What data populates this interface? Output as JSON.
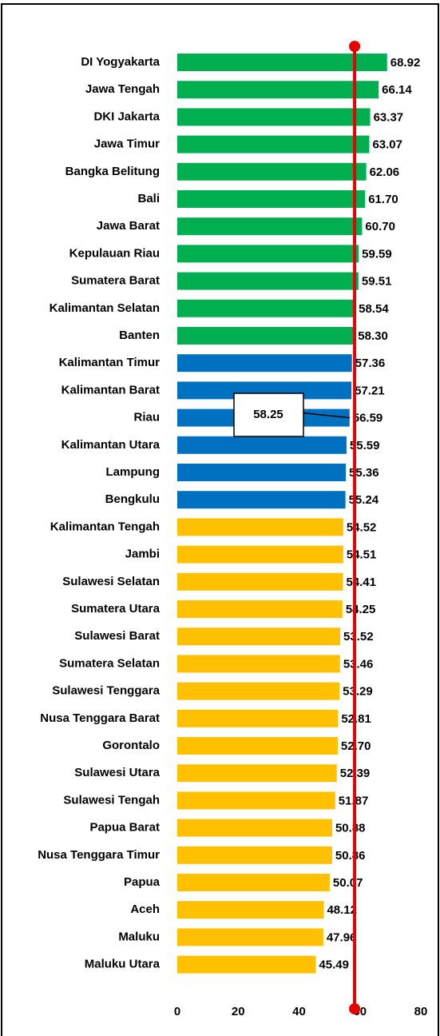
{
  "chart_data": {
    "type": "hbar",
    "categories": [
      "DI Yogyakarta",
      "Jawa Tengah",
      "DKI Jakarta",
      "Jawa Timur",
      "Bangka Belitung",
      "Bali",
      "Jawa Barat",
      "Kepulauan Riau",
      "Sumatera Barat",
      "Kalimantan Selatan",
      "Banten",
      "Kalimantan Timur",
      "Kalimantan Barat",
      "Riau",
      "Kalimantan Utara",
      "Lampung",
      "Bengkulu",
      "Kalimantan Tengah",
      "Jambi",
      "Sulawesi Selatan",
      "Sumatera Utara",
      "Sulawesi Barat",
      "Sumatera Selatan",
      "Sulawesi Tenggara",
      "Nusa Tenggara Barat",
      "Gorontalo",
      "Sulawesi Utara",
      "Sulawesi Tengah",
      "Papua Barat",
      "Nusa Tenggara Timur",
      "Papua",
      "Aceh",
      "Maluku",
      "Maluku Utara"
    ],
    "values": [
      68.92,
      66.14,
      63.37,
      63.07,
      62.06,
      61.7,
      60.7,
      59.59,
      59.51,
      58.54,
      58.3,
      57.36,
      57.21,
      56.59,
      55.59,
      55.36,
      55.24,
      54.52,
      54.51,
      54.41,
      54.25,
      53.52,
      53.46,
      53.29,
      52.81,
      52.7,
      52.39,
      51.87,
      50.88,
      50.86,
      50.07,
      48.12,
      47.96,
      45.49
    ],
    "value_labels": [
      "68.92",
      "66.14",
      "63.37",
      "63.07",
      "62.06",
      "61.70",
      "60.70",
      "59.59",
      "59.51",
      "58.54",
      "58.30",
      "57.36",
      "57.21",
      "56.59",
      "55.59",
      "55.36",
      "55.24",
      "54.52",
      "54.51",
      "54.41",
      "54.25",
      "53.52",
      "53.46",
      "53.29",
      "52.81",
      "52.70",
      "52.39",
      "51.87",
      "50.88",
      "50.86",
      "50.07",
      "48.12",
      "47.96",
      "45.49"
    ],
    "colors": [
      "#00b050",
      "#00b050",
      "#00b050",
      "#00b050",
      "#00b050",
      "#00b050",
      "#00b050",
      "#00b050",
      "#00b050",
      "#00b050",
      "#00b050",
      "#0070c0",
      "#0070c0",
      "#0070c0",
      "#0070c0",
      "#0070c0",
      "#0070c0",
      "#ffc000",
      "#ffc000",
      "#ffc000",
      "#ffc000",
      "#ffc000",
      "#ffc000",
      "#ffc000",
      "#ffc000",
      "#ffc000",
      "#ffc000",
      "#ffc000",
      "#ffc000",
      "#ffc000",
      "#ffc000",
      "#ffc000",
      "#ffc000",
      "#ffc000"
    ],
    "xlim": [
      0,
      80
    ],
    "xticks": [
      0,
      20,
      40,
      60,
      80
    ],
    "reference_line": {
      "value": 58.25,
      "color": "#e60000"
    }
  }
}
